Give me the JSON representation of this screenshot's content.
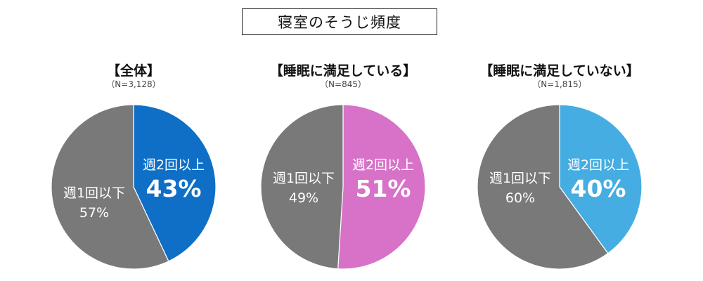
{
  "title": "寝室のそうじ頻度",
  "colors": {
    "gray": "#797979",
    "all_accent": "#0f6fc6",
    "satisfied_accent": "#d772c8",
    "unsatisfied_accent": "#45ade1"
  },
  "chart_data": [
    {
      "type": "pie",
      "title": "【全体】",
      "subtitle": "（N=3,128）",
      "categories": [
        "週2回以上",
        "週1回以下"
      ],
      "values": [
        43,
        57
      ],
      "value_labels": [
        "43%",
        "57%"
      ]
    },
    {
      "type": "pie",
      "title": "【睡眠に満足している】",
      "subtitle": "（N=845）",
      "categories": [
        "週2回以上",
        "週1回以下"
      ],
      "values": [
        51,
        49
      ],
      "value_labels": [
        "51%",
        "49%"
      ]
    },
    {
      "type": "pie",
      "title": "【睡眠に満足していない】",
      "subtitle": "（N=1,815）",
      "categories": [
        "週2回以上",
        "週1回以下"
      ],
      "values": [
        40,
        60
      ],
      "value_labels": [
        "40%",
        "60%"
      ]
    }
  ]
}
